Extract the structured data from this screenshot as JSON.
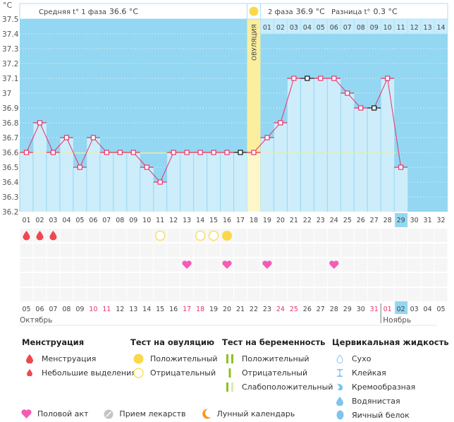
{
  "header": {
    "unit": "°C",
    "phase1_label": "Средняя t° 1 фаза",
    "phase1_value": "36.6 °C",
    "phase2_label": "2 фаза",
    "phase2_value": "36.9 °C",
    "diff_label": "Разница t°",
    "diff_value": "0.3 °C",
    "ovulation_label": "ОВУЛЯЦИЯ"
  },
  "chart_data": {
    "type": "line",
    "title": "",
    "ylabel": "°C",
    "ylim": [
      36.2,
      37.5
    ],
    "y_ticks": [
      "37.5",
      "37.4",
      "37.3",
      "37.2",
      "37.1",
      "37",
      "36.9",
      "36.8",
      "36.7",
      "36.6",
      "36.5",
      "36.4",
      "36.3",
      "36.2"
    ],
    "cycle_days": [
      "01",
      "02",
      "03",
      "04",
      "05",
      "06",
      "07",
      "08",
      "09",
      "10",
      "11",
      "12",
      "13",
      "14",
      "15",
      "16",
      "17",
      "18",
      "19",
      "20",
      "21",
      "22",
      "23",
      "24",
      "25",
      "26",
      "27",
      "28",
      "29",
      "30",
      "31",
      "32"
    ],
    "current_day": "29",
    "ovulation_day": 18,
    "phase2_days": [
      "01",
      "02",
      "03",
      "04",
      "05",
      "06",
      "07",
      "08",
      "09",
      "10",
      "11",
      "12",
      "13",
      "14"
    ],
    "coverline": 36.6,
    "coverline_end_day": 29,
    "series": [
      {
        "name": "Базальная температура",
        "color": "#e8336b",
        "values": [
          36.6,
          36.8,
          36.6,
          36.7,
          36.5,
          36.7,
          36.6,
          36.6,
          36.6,
          36.5,
          36.4,
          36.6,
          36.6,
          36.6,
          36.6,
          36.6,
          36.6,
          36.6,
          36.7,
          36.8,
          37.1,
          37.1,
          37.1,
          37.1,
          37.0,
          36.9,
          36.9,
          37.1,
          36.5
        ],
        "highlighted_days": [
          17,
          22,
          27
        ]
      }
    ]
  },
  "calendar": {
    "dates": [
      "05",
      "06",
      "07",
      "08",
      "09",
      "10",
      "11",
      "12",
      "13",
      "14",
      "15",
      "16",
      "17",
      "18",
      "19",
      "20",
      "21",
      "22",
      "23",
      "24",
      "25",
      "26",
      "27",
      "28",
      "29",
      "30",
      "31",
      "01",
      "02",
      "03",
      "04",
      "05"
    ],
    "weekend": [
      false,
      false,
      false,
      false,
      false,
      true,
      true,
      false,
      false,
      false,
      false,
      false,
      true,
      true,
      false,
      false,
      false,
      false,
      false,
      true,
      true,
      false,
      false,
      false,
      false,
      false,
      true,
      true,
      false,
      false,
      false,
      false
    ],
    "today_index": 28,
    "month1": "Октябрь",
    "month2": "Ноябрь",
    "month2_start_index": 27
  },
  "markers": {
    "menstruation_days": [
      1,
      2,
      3
    ],
    "ovulation_test_negative_days": [
      11,
      14,
      15
    ],
    "ovulation_test_positive_days": [
      16
    ],
    "intercourse_days": [
      13,
      16,
      19,
      24
    ]
  },
  "legend": {
    "menstruation": {
      "title": "Менструация",
      "items": [
        "Менструация",
        "Небольшие выделения"
      ]
    },
    "ovulation_test": {
      "title": "Тест на овуляцию",
      "items": [
        "Положительный",
        "Отрицательный"
      ]
    },
    "pregnancy_test": {
      "title": "Тест на беременность",
      "items": [
        "Положительный",
        "Отрицательный",
        "Слабоположительный"
      ]
    },
    "cervical_fluid": {
      "title": "Цервикальная жидкость",
      "items": [
        "Сухо",
        "Клейкая",
        "Кремообразная",
        "Водянистая",
        "Яичный белок"
      ]
    },
    "bottom": [
      "Половой акт",
      "Прием лекарств",
      "Лунный календарь"
    ]
  },
  "colors": {
    "sky": "#93d7f2",
    "bar": "#cdedfb",
    "ovulation": "#fbee9e",
    "line": "#e8336b",
    "coverline": "#f3ee8a",
    "weekend": "#e8336b",
    "blood": "#f0474f",
    "ovul_test": "#f9d948",
    "heart": "#f65bb5",
    "preg": "#8cc21f"
  }
}
